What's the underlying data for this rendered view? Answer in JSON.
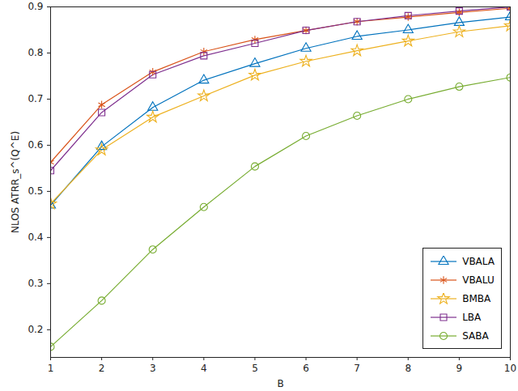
{
  "chart_data": {
    "type": "line",
    "x_label": "B",
    "y_label": "NLOS ATRR_s^(Q^E)",
    "x": [
      1,
      2,
      3,
      4,
      5,
      6,
      7,
      8,
      9,
      10
    ],
    "xlim": [
      1,
      10
    ],
    "xticks": [
      1,
      2,
      3,
      4,
      5,
      6,
      7,
      8,
      9,
      10
    ],
    "ylim": [
      0.14,
      0.9
    ],
    "yticks": [
      0.2,
      0.3,
      0.4,
      0.5,
      0.6,
      0.7,
      0.8,
      0.9
    ],
    "grid": false,
    "legend": "bottom-right",
    "series": [
      {
        "name": "VBALA",
        "color": "#0072BD",
        "marker": "triangle",
        "values": [
          0.47,
          0.597,
          0.682,
          0.741,
          0.777,
          0.81,
          0.836,
          0.85,
          0.866,
          0.878
        ]
      },
      {
        "name": "VBALU",
        "color": "#D95319",
        "marker": "asterisk",
        "values": [
          0.563,
          0.688,
          0.759,
          0.803,
          0.829,
          0.849,
          0.868,
          0.878,
          0.888,
          0.897
        ]
      },
      {
        "name": "BMBA",
        "color": "#EDB120",
        "marker": "star",
        "values": [
          0.473,
          0.59,
          0.661,
          0.707,
          0.752,
          0.782,
          0.805,
          0.826,
          0.846,
          0.859
        ]
      },
      {
        "name": "LBA",
        "color": "#7E2F8E",
        "marker": "square",
        "values": [
          0.545,
          0.671,
          0.753,
          0.794,
          0.821,
          0.849,
          0.868,
          0.881,
          0.891,
          0.9
        ]
      },
      {
        "name": "SABA",
        "color": "#77AC30",
        "marker": "circle",
        "values": [
          0.163,
          0.263,
          0.374,
          0.466,
          0.554,
          0.62,
          0.664,
          0.7,
          0.727,
          0.747
        ]
      }
    ]
  }
}
